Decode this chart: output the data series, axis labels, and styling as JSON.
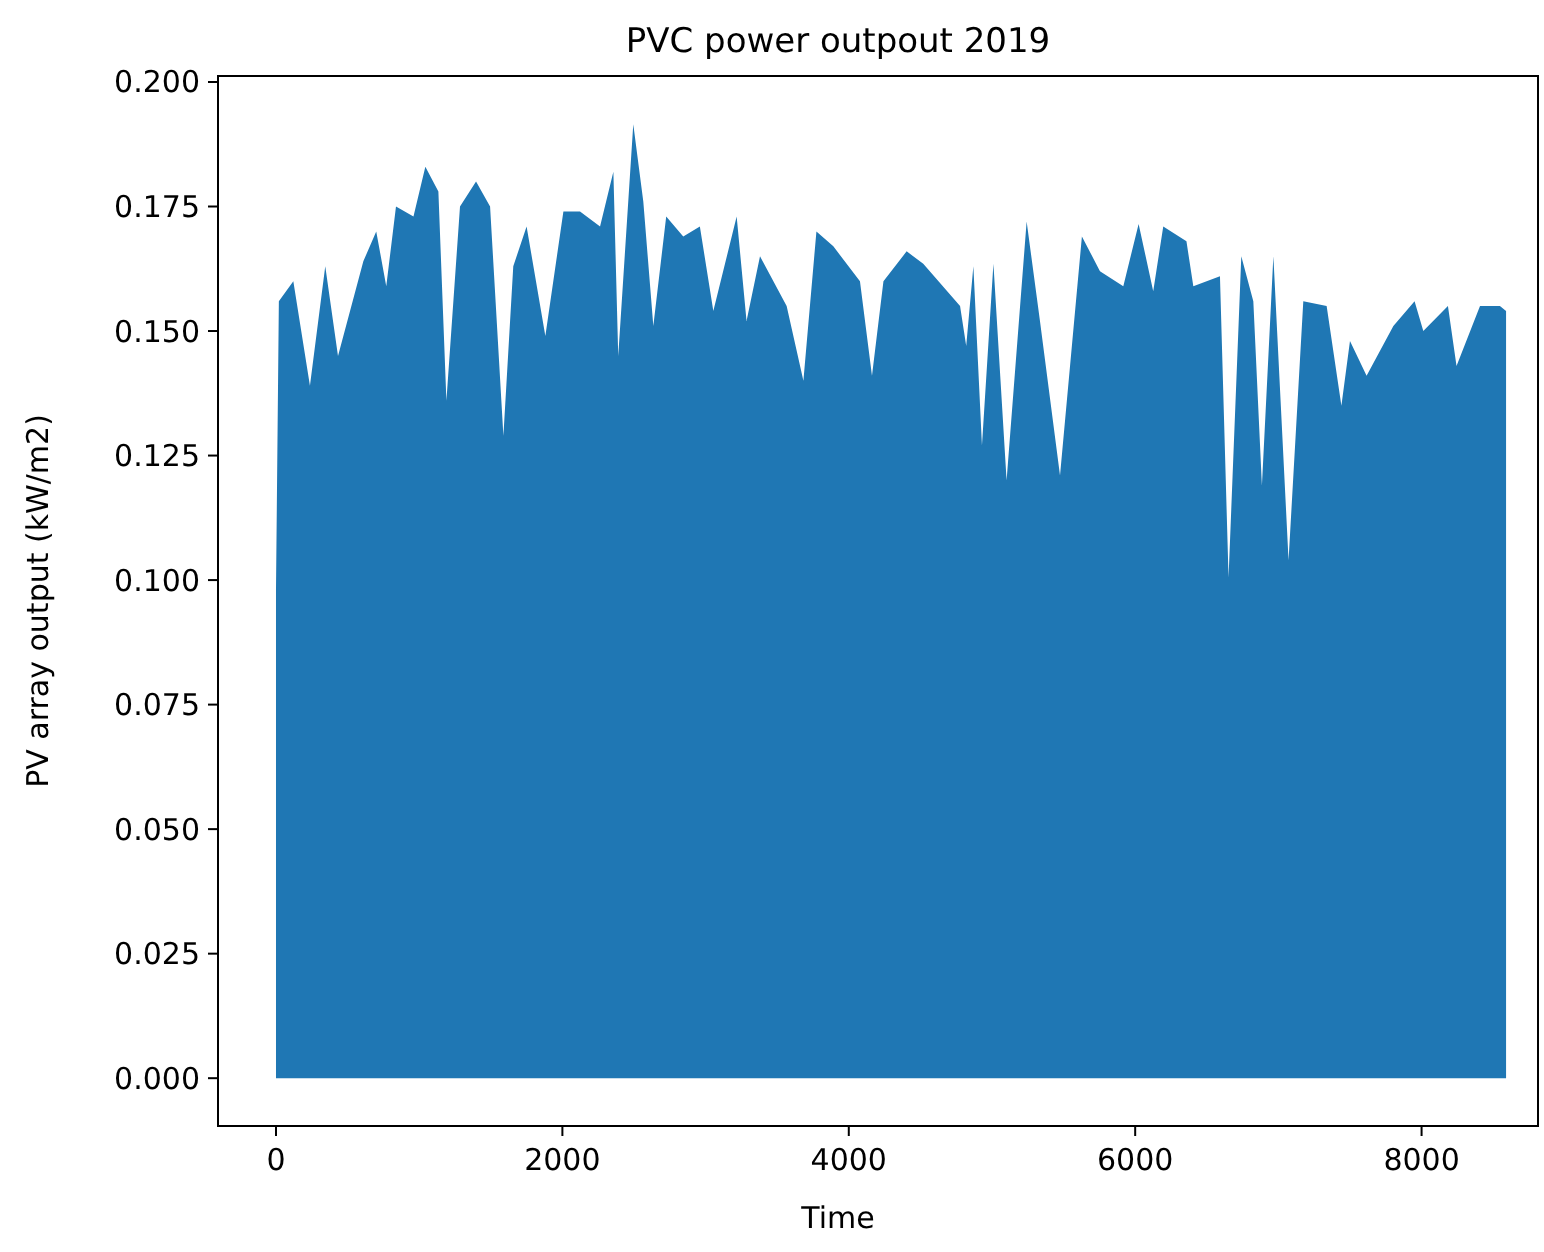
{
  "chart_data": {
    "type": "area",
    "title": "PVC power outpout 2019",
    "xlabel": "Time",
    "ylabel": "PV array output (kW/m2)",
    "x": [
      0,
      20,
      121,
      237,
      344,
      433,
      610,
      700,
      770,
      838,
      960,
      1043,
      1134,
      1190,
      1285,
      1397,
      1495,
      1588,
      1657,
      1750,
      1881,
      2007,
      2123,
      2263,
      2356,
      2390,
      2495,
      2565,
      2635,
      2725,
      2844,
      2960,
      3054,
      3217,
      3286,
      3380,
      3566,
      3683,
      3774,
      3892,
      4078,
      4162,
      4242,
      4404,
      4520,
      4777,
      4820,
      4870,
      4930,
      5010,
      5102,
      5242,
      5335,
      5475,
      5628,
      5754,
      5917,
      6024,
      6126,
      6196,
      6358,
      6406,
      6592,
      6652,
      6741,
      6825,
      6885,
      6965,
      7071,
      7174,
      7337,
      7440,
      7500,
      7616,
      7803,
      7951,
      8012,
      8184,
      8244,
      8408,
      8547,
      8590
    ],
    "series": [
      {
        "color": "#1f77b4",
        "values": [
          0.098,
          0.156,
          0.16,
          0.139,
          0.163,
          0.145,
          0.164,
          0.17,
          0.159,
          0.175,
          0.173,
          0.183,
          0.178,
          0.136,
          0.175,
          0.18,
          0.175,
          0.129,
          0.163,
          0.171,
          0.149,
          0.174,
          0.174,
          0.171,
          0.182,
          0.145,
          0.1915,
          0.176,
          0.151,
          0.173,
          0.169,
          0.171,
          0.154,
          0.173,
          0.152,
          0.165,
          0.155,
          0.14,
          0.17,
          0.167,
          0.16,
          0.141,
          0.16,
          0.166,
          0.1635,
          0.155,
          0.147,
          0.163,
          0.127,
          0.1635,
          0.12,
          0.172,
          0.152,
          0.121,
          0.169,
          0.162,
          0.159,
          0.1715,
          0.158,
          0.171,
          0.168,
          0.159,
          0.161,
          0.1005,
          0.165,
          0.156,
          0.119,
          0.165,
          0.104,
          0.156,
          0.155,
          0.135,
          0.148,
          0.141,
          0.151,
          0.156,
          0.15,
          0.155,
          0.143,
          0.155,
          0.155,
          0.154
        ]
      }
    ],
    "xlim": [
      -405,
      8813
    ],
    "ylim": [
      -0.0096,
      0.2012
    ],
    "xticks": [
      0,
      2000,
      4000,
      6000,
      8000
    ],
    "yticks": [
      {
        "value": 0,
        "label": "0.000"
      },
      {
        "value": 0.025,
        "label": "0.025"
      },
      {
        "value": 0.05,
        "label": "0.050"
      },
      {
        "value": 0.075,
        "label": "0.075"
      },
      {
        "value": 0.1,
        "label": "0.100"
      },
      {
        "value": 0.125,
        "label": "0.125"
      },
      {
        "value": 0.15,
        "label": "0.150"
      },
      {
        "value": 0.175,
        "label": "0.175"
      },
      {
        "value": 0.2,
        "label": "0.200"
      }
    ],
    "grid": false
  }
}
